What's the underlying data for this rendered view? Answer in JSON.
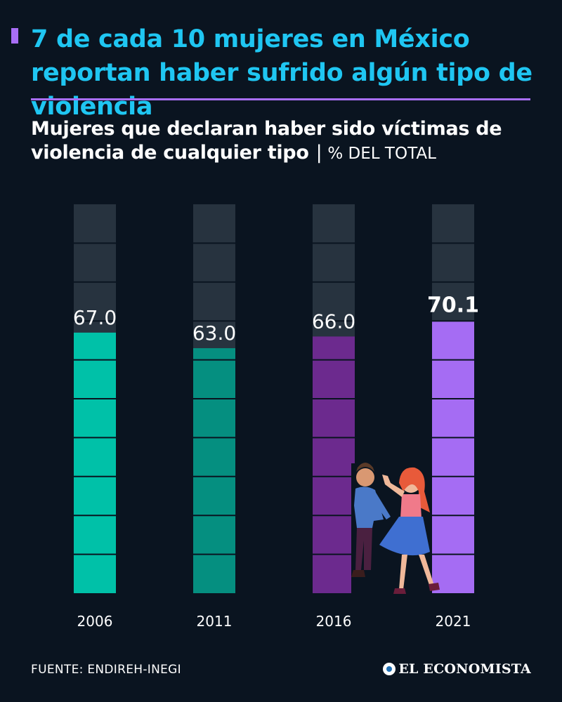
{
  "header": {
    "title": "7 de cada 10 mujeres en México reportan haber sufrido algún tipo de violencia",
    "subtitle": "Mujeres que declaran haber sido víctimas de violencia de cualquier tipo",
    "separator": "|",
    "unit": "% DEL TOTAL"
  },
  "footer": {
    "source": "FUENTE: ENDIREH-INEGI",
    "brand": "EL ECONOMISTA"
  },
  "colors": {
    "background": "#0a1420",
    "title": "#1fc6f2",
    "accent": "#a86ef5",
    "bar_track": "#27333f"
  },
  "chart_data": {
    "type": "bar",
    "categories": [
      "2006",
      "2011",
      "2016",
      "2021"
    ],
    "values": [
      67.0,
      63.0,
      66.0,
      70.1
    ],
    "value_labels": [
      "67.0",
      "63.0",
      "66.0",
      "70.1"
    ],
    "bar_colors": [
      "#00c1a8",
      "#058f80",
      "#6c2a8e",
      "#a56cf3"
    ],
    "highlight": "2021",
    "ylim": [
      0,
      100
    ]
  }
}
